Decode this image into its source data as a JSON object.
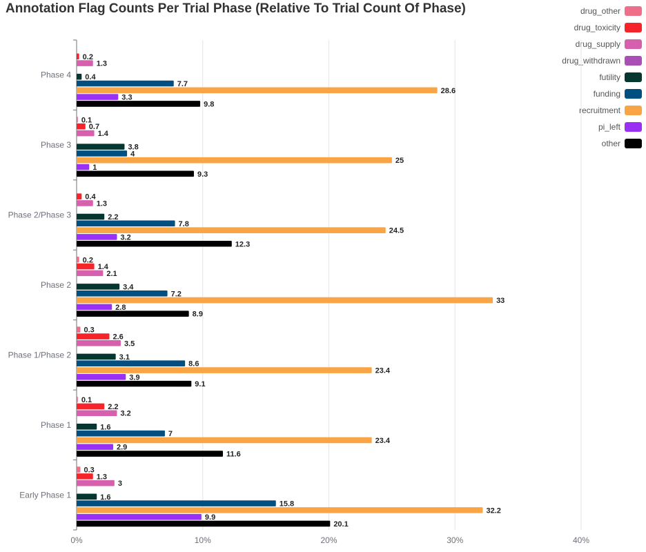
{
  "chart_data": {
    "type": "bar",
    "orientation": "horizontal",
    "title": "Annotation Flag Counts Per Trial Phase (Relative To Trial Count Of Phase)",
    "categories": [
      "Early Phase 1",
      "Phase 1",
      "Phase 1/Phase 2",
      "Phase 2",
      "Phase 2/Phase 3",
      "Phase 3",
      "Phase 4"
    ],
    "xlim": [
      0,
      40
    ],
    "x_ticks": [
      "0%",
      "10%",
      "20%",
      "30%",
      "40%"
    ],
    "grid": true,
    "legend_position": "top-right",
    "series": [
      {
        "name": "drug_other",
        "color": "#ee6f8a",
        "values": [
          0.3,
          0.1,
          0.3,
          0.2,
          0,
          0.1,
          0
        ]
      },
      {
        "name": "drug_toxicity",
        "color": "#f5242b",
        "values": [
          1.3,
          2.2,
          2.6,
          1.4,
          0.4,
          0.7,
          0.2
        ]
      },
      {
        "name": "drug_supply",
        "color": "#d660ae",
        "values": [
          3,
          3.2,
          3.5,
          2.1,
          1.3,
          1.4,
          1.3
        ]
      },
      {
        "name": "drug_withdrawn",
        "color": "#a94fb6",
        "values": [
          0,
          0,
          0,
          0,
          0,
          0,
          0
        ]
      },
      {
        "name": "futility",
        "color": "#053630",
        "values": [
          1.6,
          1.6,
          3.1,
          3.4,
          2.2,
          3.8,
          0.4
        ]
      },
      {
        "name": "funding",
        "color": "#014f80",
        "values": [
          15.8,
          7,
          8.6,
          7.2,
          7.8,
          4,
          7.7
        ]
      },
      {
        "name": "recruitment",
        "color": "#f9a445",
        "values": [
          32.2,
          23.4,
          23.4,
          33,
          24.5,
          25,
          28.6
        ]
      },
      {
        "name": "pi_left",
        "color": "#9a30f3",
        "values": [
          9.9,
          2.9,
          3.9,
          2.8,
          3.2,
          1,
          3.3
        ]
      },
      {
        "name": "other",
        "color": "#000000",
        "values": [
          20.1,
          11.6,
          9.1,
          8.9,
          12.3,
          9.3,
          9.8
        ]
      }
    ],
    "data_labels": [
      [
        "0.3",
        "0.1",
        "0.3",
        "0.2",
        "",
        "0.1",
        ""
      ],
      [
        "1.3",
        "2.2",
        "2.6",
        "1.4",
        "0.4",
        "0.7",
        "0.2"
      ],
      [
        "3",
        "3.2",
        "3.5",
        "2.1",
        "1.3",
        "1.4",
        "1.3"
      ],
      [
        "",
        "",
        "",
        "",
        "",
        "",
        ""
      ],
      [
        "1.6",
        "1.6",
        "3.1",
        "3.4",
        "2.2",
        "3.8",
        "0.4"
      ],
      [
        "15.8",
        "7",
        "8.6",
        "7.2",
        "7.8",
        "4",
        "7.7"
      ],
      [
        "32.2",
        "23.4",
        "23.4",
        "33",
        "24.5",
        "25",
        "28.6"
      ],
      [
        "9.9",
        "2.9",
        "3.9",
        "2.8",
        "3.2",
        "1",
        "3.3"
      ],
      [
        "20.1",
        "11.6",
        "9.1",
        "8.9",
        "12.3",
        "9.3",
        "9.8"
      ]
    ]
  }
}
